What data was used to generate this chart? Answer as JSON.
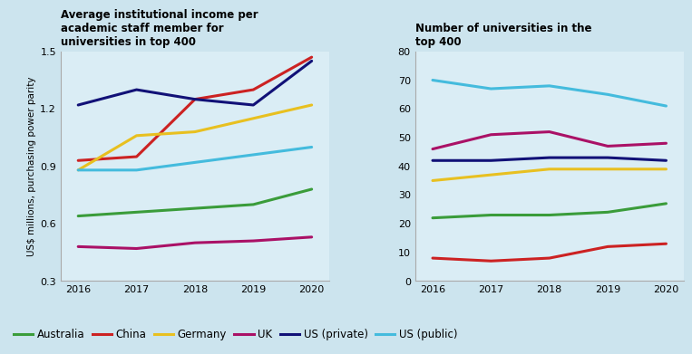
{
  "years": [
    2016,
    2017,
    2018,
    2019,
    2020
  ],
  "background_color": "#cce4ee",
  "plot_bg_color": "#daedf5",
  "left_chart": {
    "title": "Average institutional income per\nacademic staff member for\nuniversities in top 400",
    "ylabel": "US$ millions, purchasing power parity",
    "ylim": [
      0.3,
      1.5
    ],
    "yticks": [
      0.3,
      0.6,
      0.9,
      1.2,
      1.5
    ],
    "series": {
      "Australia": [
        0.64,
        0.66,
        0.68,
        0.7,
        0.78
      ],
      "China": [
        0.93,
        0.95,
        1.25,
        1.3,
        1.47
      ],
      "Germany": [
        0.88,
        1.06,
        1.08,
        1.15,
        1.22
      ],
      "UK": [
        0.48,
        0.47,
        0.5,
        0.51,
        0.53
      ],
      "US (private)": [
        1.22,
        1.3,
        1.25,
        1.22,
        1.45
      ],
      "US (public)": [
        0.88,
        0.88,
        0.92,
        0.96,
        1.0
      ]
    }
  },
  "right_chart": {
    "title": "Number of universities in the\ntop 400",
    "ylabel": "",
    "ylim": [
      0,
      80
    ],
    "yticks": [
      0,
      10,
      20,
      30,
      40,
      50,
      60,
      70,
      80
    ],
    "series": {
      "Australia": [
        22,
        23,
        23,
        24,
        27
      ],
      "China": [
        8,
        7,
        8,
        12,
        13
      ],
      "Germany": [
        35,
        37,
        39,
        39,
        39
      ],
      "UK": [
        46,
        51,
        52,
        47,
        48
      ],
      "US (private)": [
        42,
        42,
        43,
        43,
        42
      ],
      "US (public)": [
        70,
        67,
        68,
        65,
        61
      ]
    }
  },
  "colors": {
    "Australia": "#3a9c3a",
    "China": "#cc2222",
    "Germany": "#e8c020",
    "UK": "#aa1166",
    "US (private)": "#111177",
    "US (public)": "#44bbdd"
  },
  "legend_order": [
    "Australia",
    "China",
    "Germany",
    "UK",
    "US (private)",
    "US (public)"
  ]
}
